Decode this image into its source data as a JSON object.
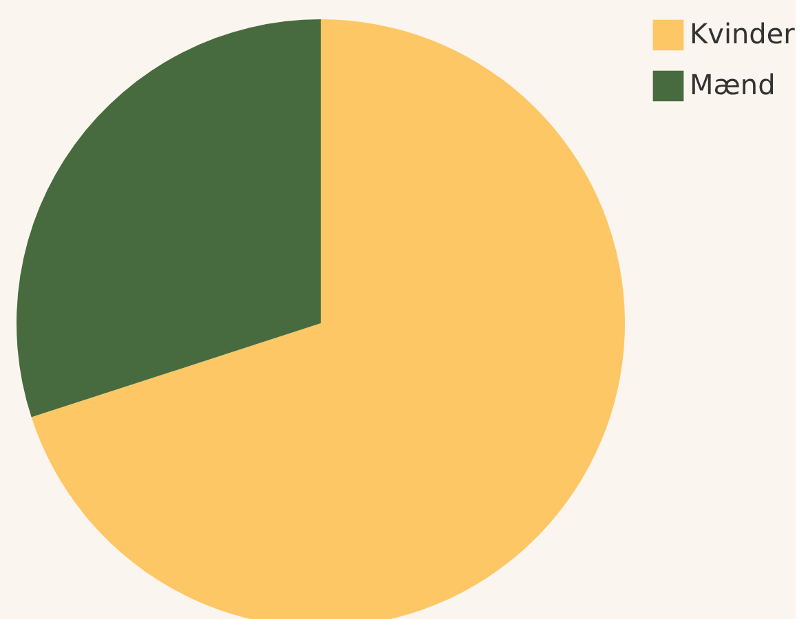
{
  "chart_data": {
    "type": "pie",
    "categories": [
      "Kvinder",
      "Mænd"
    ],
    "values": [
      70,
      30
    ],
    "colors": [
      "#fdc765",
      "#476b3f"
    ],
    "legend": "top right"
  }
}
